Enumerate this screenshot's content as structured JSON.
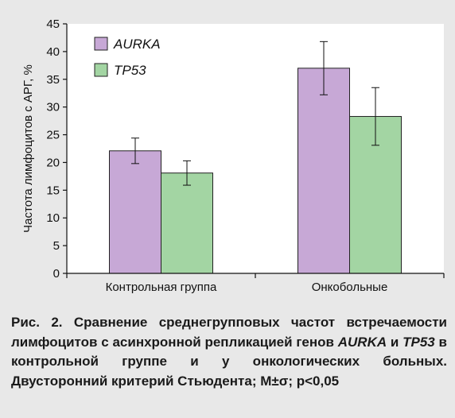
{
  "chart_data": {
    "type": "bar",
    "categories": [
      "Контрольная группа",
      "Онкобольные"
    ],
    "series": [
      {
        "name": "AURKA",
        "color": "#c7a8d6",
        "values": [
          22.1,
          37.0
        ],
        "errors": [
          2.3,
          4.8
        ]
      },
      {
        "name": "TP53",
        "color": "#a3d5a3",
        "values": [
          18.1,
          28.3
        ],
        "errors": [
          2.2,
          5.2
        ]
      }
    ],
    "ylabel": "Частота лимфоцитов с АРГ, %",
    "xlabel": "",
    "ylim": [
      0,
      45
    ],
    "yticks": [
      "0",
      "5",
      "10",
      "15",
      "20",
      "25",
      "30",
      "35",
      "40",
      "45"
    ],
    "legend_position": "top-left",
    "plot_background": "#ffffff",
    "grid": false
  },
  "caption": {
    "prefix": "Рис. 2. Сравнение среднегрупповых частот встречаемости лимфоцитов с асинхронной репликацией генов ",
    "gene1": "AURKA",
    "mid": " и ",
    "gene2": "TP53",
    "suffix": " в контрольной группе и у онкологических больных. Двусторонний критерий Стьюдента; M±σ; p<0,05"
  }
}
